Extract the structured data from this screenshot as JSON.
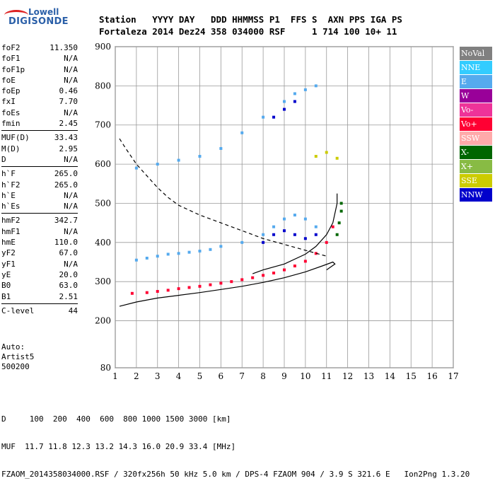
{
  "logo": {
    "line1": "Lowell",
    "line2": "DIGISONDE"
  },
  "header": {
    "row1": "Station   YYYY DAY   DDD HHMMSS P1  FFS S  AXN PPS IGA PS",
    "row2": "Fortaleza 2014 Dez24 358 034000 RSF     1 714 100 10+ 11"
  },
  "params": [
    {
      "name": "foF2",
      "value": "11.350"
    },
    {
      "name": "foF1",
      "value": "N/A"
    },
    {
      "name": "foF1p",
      "value": "N/A"
    },
    {
      "name": "foE",
      "value": "N/A"
    },
    {
      "name": "foEp",
      "value": "0.46"
    },
    {
      "name": "fxI",
      "value": "7.70"
    },
    {
      "name": "foEs",
      "value": "N/A"
    },
    {
      "name": "fmin",
      "value": "2.45"
    },
    {
      "sep": true
    },
    {
      "name": "MUF(D)",
      "value": "33.43"
    },
    {
      "name": "M(D)",
      "value": "2.95"
    },
    {
      "name": "D",
      "value": "N/A"
    },
    {
      "sep": true
    },
    {
      "name": "h`F",
      "value": "265.0"
    },
    {
      "name": "h`F2",
      "value": "265.0"
    },
    {
      "name": "h`E",
      "value": "N/A"
    },
    {
      "name": "h`Es",
      "value": "N/A"
    },
    {
      "sep": true
    },
    {
      "name": "hmF2",
      "value": "342.7"
    },
    {
      "name": "hmF1",
      "value": "N/A"
    },
    {
      "name": "hmE",
      "value": "110.0"
    },
    {
      "name": "yF2",
      "value": "67.0"
    },
    {
      "name": "yF1",
      "value": "N/A"
    },
    {
      "name": "yE",
      "value": "20.0"
    },
    {
      "name": "B0",
      "value": "63.0"
    },
    {
      "name": "B1",
      "value": "2.51"
    },
    {
      "sep": true
    },
    {
      "name": "C-level",
      "value": "44"
    }
  ],
  "auto": {
    "line1": "Auto:",
    "line2": "Artist5",
    "line3": "500200"
  },
  "legend": [
    {
      "label": "NoVal",
      "color": "#808080"
    },
    {
      "label": "NNE",
      "color": "#33ccff"
    },
    {
      "label": "E",
      "color": "#55aaee"
    },
    {
      "label": "W",
      "color": "#990099"
    },
    {
      "label": "Vo-",
      "color": "#ee3399"
    },
    {
      "label": "Vo+",
      "color": "#ff0033"
    },
    {
      "label": "SSW",
      "color": "#ffaaaa"
    },
    {
      "label": "X-",
      "color": "#006600"
    },
    {
      "label": "X+",
      "color": "#88bb44"
    },
    {
      "label": "SSE",
      "color": "#cccc00"
    },
    {
      "label": "NNW",
      "color": "#0000cc"
    }
  ],
  "footer": {
    "line1": "D     100  200  400  600  800 1000 1500 3000 [km]",
    "line2": "MUF  11.7 11.8 12.3 13.2 14.3 16.0 20.9 33.4 [MHz]",
    "line3": "FZAOM_2014358034000.RSF / 320fx256h 50 kHz 5.0 km / DPS-4 FZAOM 904 / 3.9 S 321.6 E   Ion2Png 1.3.20"
  },
  "chart_data": {
    "type": "scatter",
    "xlim": [
      1,
      17
    ],
    "ylim": [
      80,
      900
    ],
    "xticks": [
      1,
      2,
      3,
      4,
      5,
      6,
      7,
      8,
      9,
      10,
      11,
      12,
      13,
      14,
      15,
      16,
      17
    ],
    "yticks": [
      80,
      200,
      300,
      400,
      500,
      600,
      700,
      800,
      900
    ],
    "xlabel": "",
    "ylabel": "",
    "grid": true,
    "legend_position": "right",
    "series": [
      {
        "color_key": "Vo+",
        "points": [
          [
            1.8,
            270
          ],
          [
            2.5,
            272
          ],
          [
            3.0,
            275
          ],
          [
            3.5,
            278
          ],
          [
            4.0,
            282
          ],
          [
            4.5,
            285
          ],
          [
            5.0,
            288
          ],
          [
            5.5,
            292
          ],
          [
            6.0,
            296
          ],
          [
            6.5,
            300
          ],
          [
            7.0,
            305
          ],
          [
            7.5,
            310
          ],
          [
            8.0,
            316
          ],
          [
            8.5,
            322
          ],
          [
            9.0,
            330
          ],
          [
            9.5,
            340
          ],
          [
            10.0,
            352
          ],
          [
            10.5,
            372
          ],
          [
            11.0,
            400
          ],
          [
            11.3,
            440
          ]
        ]
      },
      {
        "color_key": "E",
        "points": [
          [
            2.0,
            355
          ],
          [
            2.5,
            360
          ],
          [
            3.0,
            365
          ],
          [
            3.5,
            370
          ],
          [
            4.0,
            372
          ],
          [
            4.5,
            375
          ],
          [
            5.0,
            378
          ],
          [
            5.5,
            382
          ],
          [
            6.0,
            390
          ],
          [
            7.0,
            400
          ],
          [
            8.0,
            420
          ],
          [
            8.5,
            440
          ],
          [
            9.0,
            460
          ],
          [
            9.5,
            470
          ],
          [
            10.0,
            460
          ],
          [
            10.5,
            440
          ]
        ]
      },
      {
        "color_key": "NNW",
        "points": [
          [
            8.0,
            400
          ],
          [
            8.5,
            420
          ],
          [
            9.0,
            430
          ],
          [
            9.5,
            420
          ],
          [
            10.0,
            410
          ],
          [
            10.5,
            420
          ],
          [
            8.5,
            720
          ],
          [
            9.0,
            740
          ],
          [
            9.5,
            760
          ]
        ]
      },
      {
        "color_key": "E",
        "points": [
          [
            2.0,
            590
          ],
          [
            3.0,
            600
          ],
          [
            4.0,
            610
          ],
          [
            5.0,
            620
          ],
          [
            6.0,
            640
          ],
          [
            7.0,
            680
          ],
          [
            8.0,
            720
          ],
          [
            9.0,
            760
          ],
          [
            9.5,
            780
          ],
          [
            10.0,
            790
          ],
          [
            10.5,
            800
          ]
        ]
      },
      {
        "color_key": "X-",
        "points": [
          [
            11.5,
            420
          ],
          [
            11.6,
            450
          ],
          [
            11.7,
            480
          ],
          [
            11.7,
            500
          ]
        ]
      },
      {
        "color_key": "SSE",
        "points": [
          [
            10.5,
            620
          ],
          [
            11.0,
            630
          ],
          [
            11.5,
            615
          ]
        ]
      }
    ],
    "lines": [
      {
        "style": "solid",
        "points": [
          [
            1.2,
            237
          ],
          [
            2.0,
            248
          ],
          [
            3.0,
            258
          ],
          [
            4.0,
            265
          ],
          [
            5.0,
            272
          ],
          [
            6.0,
            280
          ],
          [
            7.0,
            288
          ],
          [
            8.0,
            298
          ],
          [
            9.0,
            310
          ],
          [
            10.0,
            325
          ],
          [
            10.8,
            340
          ],
          [
            11.3,
            350
          ],
          [
            11.4,
            345
          ],
          [
            11.0,
            330
          ]
        ]
      },
      {
        "style": "dashed",
        "points": [
          [
            1.2,
            665
          ],
          [
            1.5,
            640
          ],
          [
            2.0,
            600
          ],
          [
            2.5,
            570
          ],
          [
            3.0,
            540
          ],
          [
            3.5,
            515
          ],
          [
            4.0,
            495
          ],
          [
            5.0,
            470
          ],
          [
            6.0,
            450
          ],
          [
            7.0,
            430
          ],
          [
            8.0,
            410
          ],
          [
            9.0,
            395
          ],
          [
            10.0,
            380
          ],
          [
            11.0,
            365
          ]
        ]
      },
      {
        "style": "solid",
        "points": [
          [
            7.5,
            320
          ],
          [
            8.0,
            330
          ],
          [
            9.0,
            345
          ],
          [
            10.0,
            370
          ],
          [
            10.5,
            390
          ],
          [
            11.0,
            420
          ],
          [
            11.3,
            450
          ],
          [
            11.5,
            500
          ],
          [
            11.5,
            525
          ]
        ]
      }
    ]
  }
}
